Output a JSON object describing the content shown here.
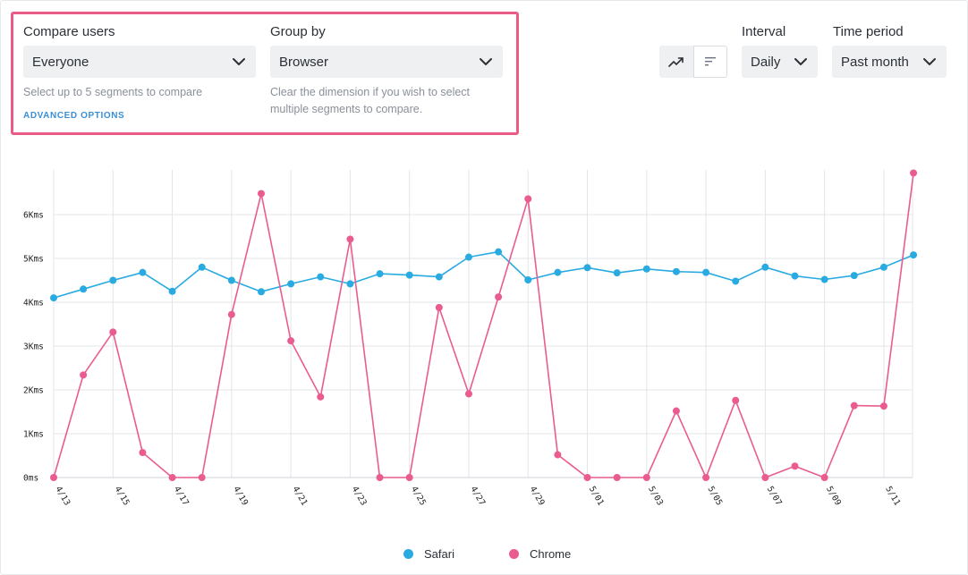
{
  "compare": {
    "label": "Compare users",
    "value": "Everyone",
    "help": "Select up to 5 segments to compare",
    "advanced": "ADVANCED OPTIONS"
  },
  "group": {
    "label": "Group by",
    "value": "Browser",
    "help_line1": "Clear the dimension if you wish to select",
    "help_line2": "multiple segments to compare."
  },
  "view_toggle": {
    "icons": [
      "trend-line-icon",
      "sort-bars-icon"
    ],
    "active": "trend-line-icon"
  },
  "interval": {
    "label": "Interval",
    "value": "Daily"
  },
  "time_period": {
    "label": "Time period",
    "value": "Past month"
  },
  "colors": {
    "safari": "#29abe2",
    "chrome": "#ea5c8f",
    "highlight": "#ea5c86",
    "link": "#3b8fd6"
  },
  "chart_data": {
    "type": "line",
    "ylim": [
      0,
      7000
    ],
    "y_ticks": [
      0,
      1000,
      2000,
      3000,
      4000,
      5000,
      6000
    ],
    "y_tick_labels": [
      "0ms",
      "1Kms",
      "2Kms",
      "3Kms",
      "4Kms",
      "5Kms",
      "6Kms"
    ],
    "x": [
      "4/13",
      "4/14",
      "4/15",
      "4/16",
      "4/17",
      "4/18",
      "4/19",
      "4/20",
      "4/21",
      "4/22",
      "4/23",
      "4/24",
      "4/25",
      "4/26",
      "4/27",
      "4/28",
      "4/29",
      "4/30",
      "5/01",
      "5/02",
      "5/03",
      "5/04",
      "5/05",
      "5/06",
      "5/07",
      "5/08",
      "5/09",
      "5/10",
      "5/11",
      "5/12"
    ],
    "x_tick_labels": [
      "4/13",
      "4/15",
      "4/17",
      "4/19",
      "4/21",
      "4/23",
      "4/25",
      "4/27",
      "4/29",
      "5/01",
      "5/03",
      "5/05",
      "5/07",
      "5/09",
      "5/11"
    ],
    "grid": true,
    "legend_position": "bottom-center",
    "series": [
      {
        "name": "Safari",
        "color": "#29abe2",
        "values": [
          4100,
          4300,
          4500,
          4680,
          4250,
          4800,
          4500,
          4240,
          4420,
          4580,
          4420,
          4650,
          4620,
          4580,
          5030,
          5150,
          4510,
          4680,
          4790,
          4670,
          4760,
          4700,
          4680,
          4480,
          4800,
          4600,
          4520,
          4610,
          4800,
          5080
        ]
      },
      {
        "name": "Chrome",
        "color": "#ea5c8f",
        "values": [
          0,
          2340,
          3320,
          570,
          0,
          0,
          3720,
          6480,
          3120,
          1840,
          5440,
          0,
          0,
          3880,
          1910,
          4120,
          6360,
          520,
          0,
          0,
          0,
          1520,
          0,
          1760,
          0,
          260,
          0,
          1640,
          1630,
          6950
        ]
      }
    ]
  }
}
